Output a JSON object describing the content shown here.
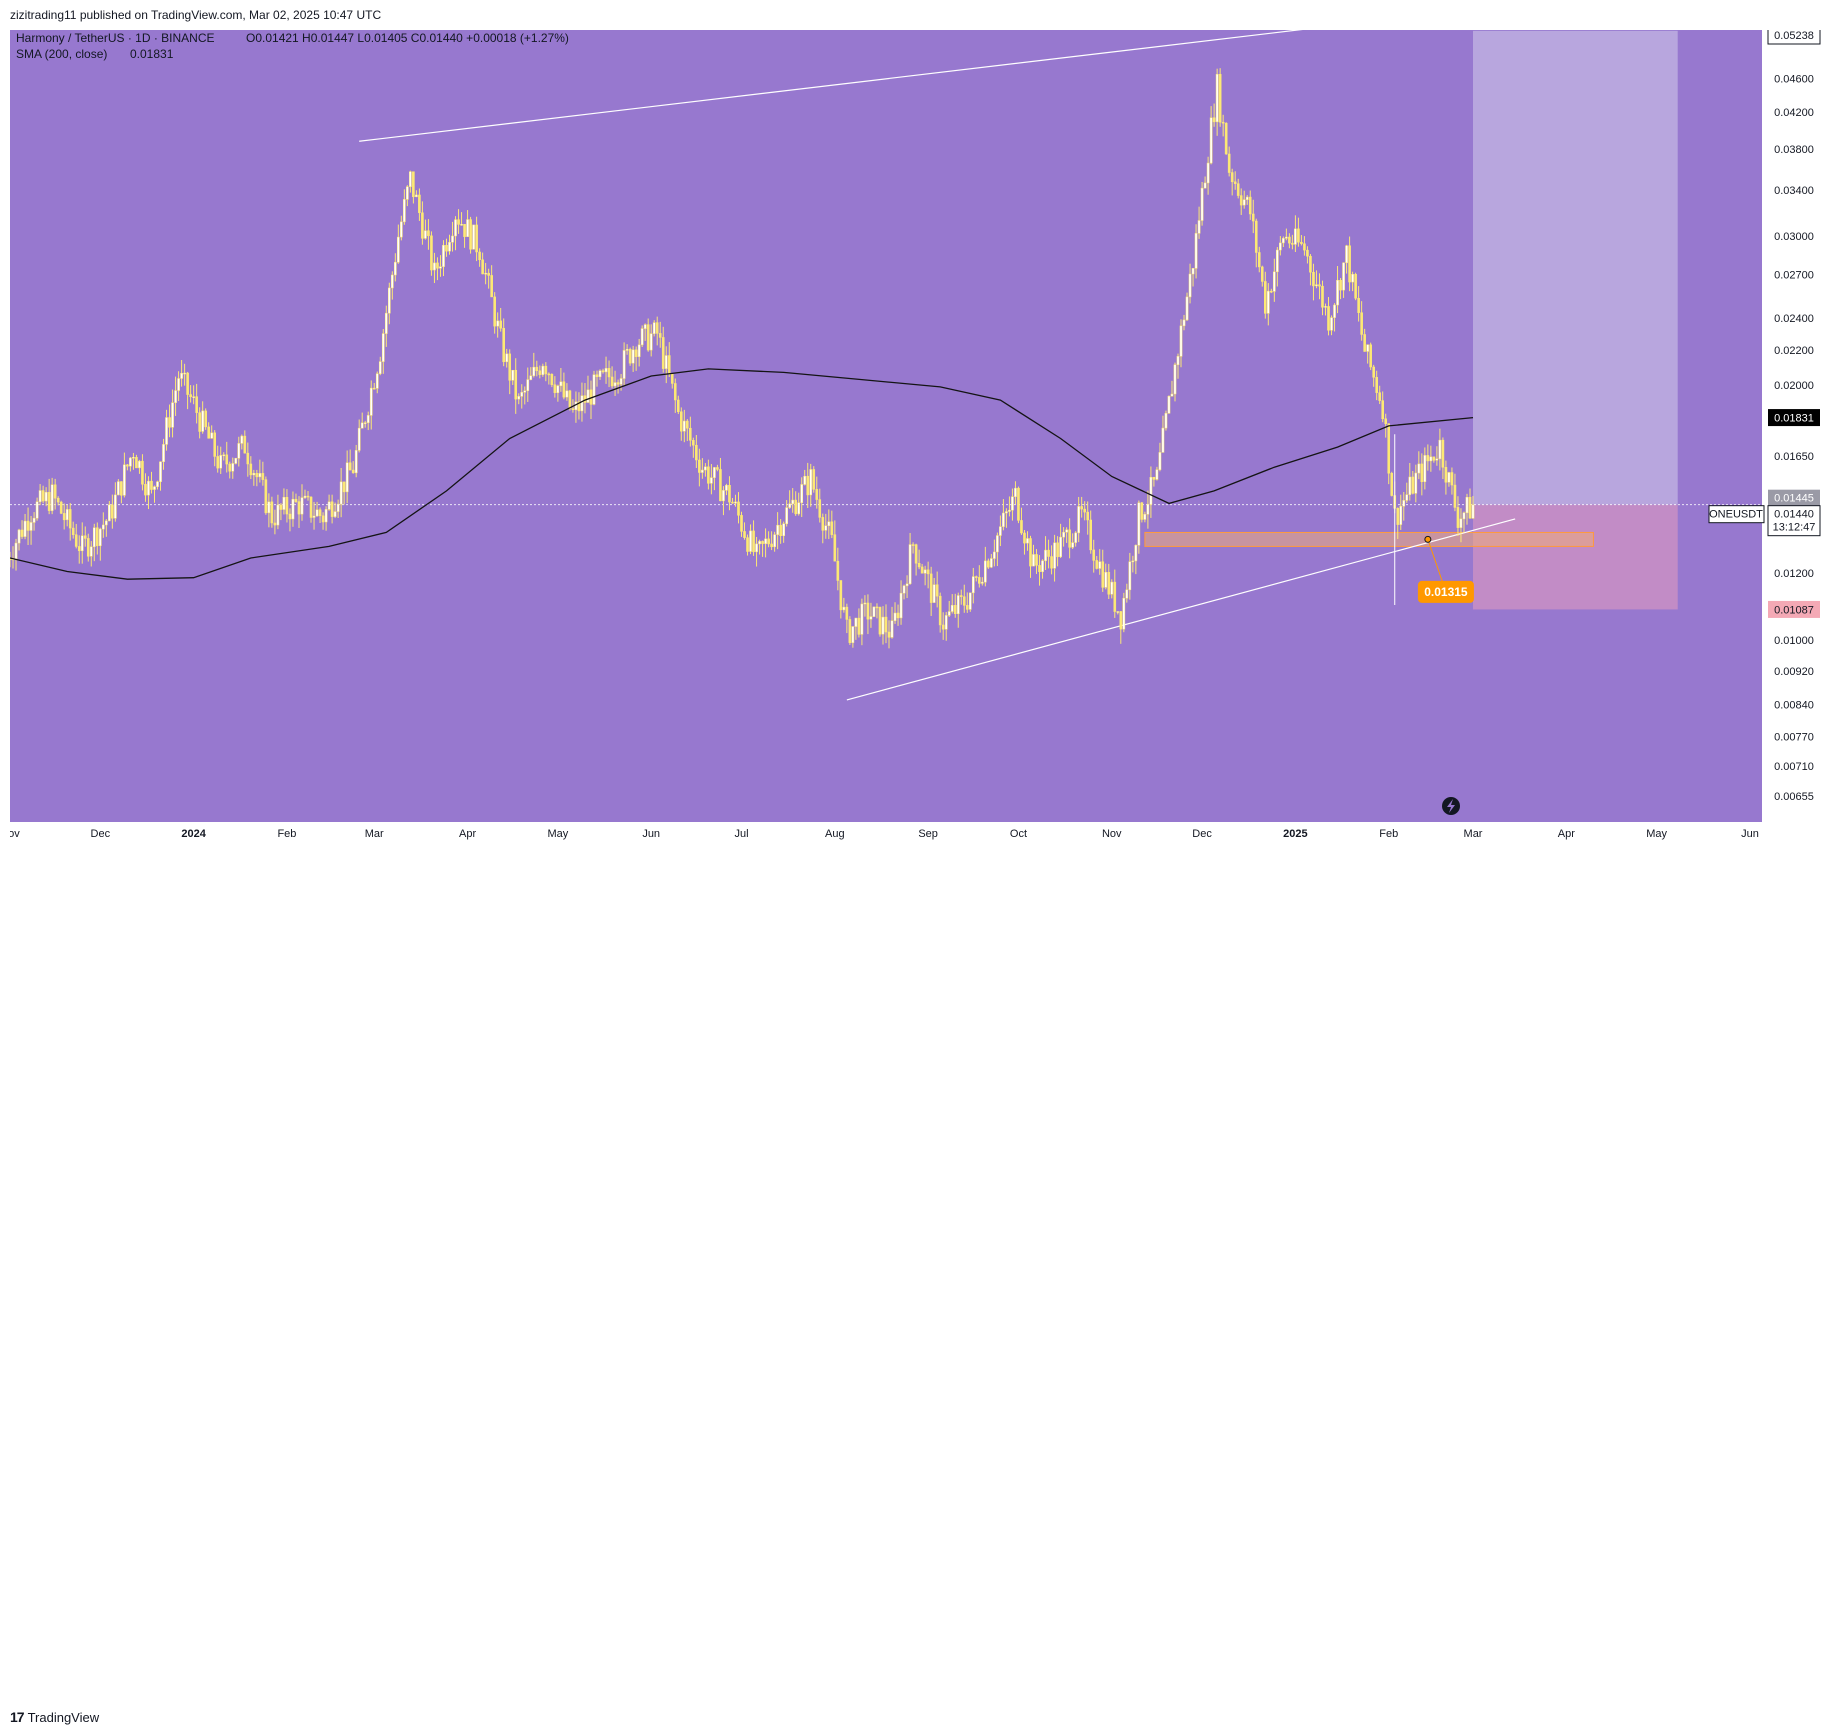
{
  "header": {
    "published": "zizitrading11 published on TradingView.com, Mar 02, 2025 10:47 UTC"
  },
  "footer": {
    "brand": "TradingView",
    "logo_icon": "tradingview-logo-icon"
  },
  "colors": {
    "background": "#9778cf",
    "candle": "#fde974",
    "candle_edge": "#ffffff",
    "sma": "#141414",
    "trendline": "#ffffff",
    "target_zone": "#b8a6de",
    "stop_zone": "#c28cc6",
    "support_box": "#f0ab7a",
    "marker": "#ff9800",
    "axis_bg": "#ffffff",
    "axis_text": "#131722"
  },
  "legend": {
    "title": "Harmony / TetherUS · 1D · BINANCE",
    "ohlc": "O0.01421 H0.01447 L0.01405 C0.01440 +0.00018 (+1.27%)",
    "sma_label": "SMA (200, close)",
    "sma_value": "0.01831"
  },
  "price_badges": {
    "top": "0.05238",
    "sma": "0.01831",
    "last_bar": "0.01445",
    "symbol": "ONEUSDT",
    "price": "0.01440",
    "countdown": "13:12:47",
    "stop": "0.01087",
    "marker": "0.01315"
  },
  "chart_data": {
    "type": "candlestick",
    "symbol": "ONEUSDT",
    "interval": "1D",
    "exchange": "BINANCE",
    "y_scale": "log",
    "ylim": [
      0.0061,
      0.0525
    ],
    "x_range": [
      "2023-11-01",
      "2025-06-05"
    ],
    "y_ticks": [
      "0.04600",
      "0.04200",
      "0.03800",
      "0.03400",
      "0.03000",
      "0.02700",
      "0.02400",
      "0.02200",
      "0.02000",
      "0.01650",
      "0.01200",
      "0.01000",
      "0.00920",
      "0.00840",
      "0.00770",
      "0.00710",
      "0.00655"
    ],
    "y_tick_values": [
      0.046,
      0.042,
      0.038,
      0.034,
      0.03,
      0.027,
      0.024,
      0.022,
      0.02,
      0.0165,
      0.012,
      0.01,
      0.0092,
      0.0084,
      0.0077,
      0.0071,
      0.00655
    ],
    "x_ticks": [
      {
        "date": "2023-11-01",
        "label": "Nov"
      },
      {
        "date": "2023-12-01",
        "label": "Dec"
      },
      {
        "date": "2024-01-01",
        "label": "2024"
      },
      {
        "date": "2024-02-01",
        "label": "Feb"
      },
      {
        "date": "2024-03-01",
        "label": "Mar"
      },
      {
        "date": "2024-04-01",
        "label": "Apr"
      },
      {
        "date": "2024-05-01",
        "label": "May"
      },
      {
        "date": "2024-06-01",
        "label": "Jun"
      },
      {
        "date": "2024-07-01",
        "label": "Jul"
      },
      {
        "date": "2024-08-01",
        "label": "Aug"
      },
      {
        "date": "2024-09-01",
        "label": "Sep"
      },
      {
        "date": "2024-10-01",
        "label": "Oct"
      },
      {
        "date": "2024-11-01",
        "label": "Nov"
      },
      {
        "date": "2024-12-01",
        "label": "Dec"
      },
      {
        "date": "2025-01-01",
        "label": "2025"
      },
      {
        "date": "2025-02-01",
        "label": "Feb"
      },
      {
        "date": "2025-03-01",
        "label": "Mar"
      },
      {
        "date": "2025-04-01",
        "label": "Apr"
      },
      {
        "date": "2025-05-01",
        "label": "May"
      },
      {
        "date": "2025-06-01",
        "label": "Jun"
      }
    ],
    "price_path": [
      {
        "date": "2023-10-31",
        "close": 0.0125
      },
      {
        "date": "2023-11-08",
        "close": 0.0142
      },
      {
        "date": "2023-11-15",
        "close": 0.0148
      },
      {
        "date": "2023-11-25",
        "close": 0.0128
      },
      {
        "date": "2023-12-04",
        "close": 0.014
      },
      {
        "date": "2023-12-12",
        "close": 0.0168
      },
      {
        "date": "2023-12-18",
        "close": 0.0148
      },
      {
        "date": "2023-12-27",
        "close": 0.0205
      },
      {
        "date": "2024-01-01",
        "close": 0.019
      },
      {
        "date": "2024-01-10",
        "close": 0.016
      },
      {
        "date": "2024-01-18",
        "close": 0.017
      },
      {
        "date": "2024-01-27",
        "close": 0.014
      },
      {
        "date": "2024-02-05",
        "close": 0.0145
      },
      {
        "date": "2024-02-13",
        "close": 0.014
      },
      {
        "date": "2024-02-23",
        "close": 0.016
      },
      {
        "date": "2024-03-03",
        "close": 0.022
      },
      {
        "date": "2024-03-09",
        "close": 0.03
      },
      {
        "date": "2024-03-13",
        "close": 0.035
      },
      {
        "date": "2024-03-17",
        "close": 0.031
      },
      {
        "date": "2024-03-21",
        "close": 0.027
      },
      {
        "date": "2024-03-28",
        "close": 0.032
      },
      {
        "date": "2024-04-05",
        "close": 0.029
      },
      {
        "date": "2024-04-12",
        "close": 0.0225
      },
      {
        "date": "2024-04-18",
        "close": 0.019
      },
      {
        "date": "2024-04-26",
        "close": 0.0215
      },
      {
        "date": "2024-05-06",
        "close": 0.0185
      },
      {
        "date": "2024-05-14",
        "close": 0.02
      },
      {
        "date": "2024-05-22",
        "close": 0.021
      },
      {
        "date": "2024-05-27",
        "close": 0.0225
      },
      {
        "date": "2024-06-03",
        "close": 0.023
      },
      {
        "date": "2024-06-10",
        "close": 0.0185
      },
      {
        "date": "2024-06-18",
        "close": 0.016
      },
      {
        "date": "2024-06-27",
        "close": 0.0148
      },
      {
        "date": "2024-07-06",
        "close": 0.0125
      },
      {
        "date": "2024-07-15",
        "close": 0.014
      },
      {
        "date": "2024-07-24",
        "close": 0.0155
      },
      {
        "date": "2024-07-31",
        "close": 0.013
      },
      {
        "date": "2024-08-05",
        "close": 0.0102
      },
      {
        "date": "2024-08-12",
        "close": 0.0108
      },
      {
        "date": "2024-08-20",
        "close": 0.0102
      },
      {
        "date": "2024-08-27",
        "close": 0.013
      },
      {
        "date": "2024-09-06",
        "close": 0.0105
      },
      {
        "date": "2024-09-14",
        "close": 0.0112
      },
      {
        "date": "2024-09-22",
        "close": 0.0128
      },
      {
        "date": "2024-09-30",
        "close": 0.0148
      },
      {
        "date": "2024-10-06",
        "close": 0.0122
      },
      {
        "date": "2024-10-14",
        "close": 0.0128
      },
      {
        "date": "2024-10-22",
        "close": 0.014
      },
      {
        "date": "2024-10-29",
        "close": 0.012
      },
      {
        "date": "2024-11-04",
        "close": 0.0107
      },
      {
        "date": "2024-11-10",
        "close": 0.014
      },
      {
        "date": "2024-11-16",
        "close": 0.0155
      },
      {
        "date": "2024-11-22",
        "close": 0.021
      },
      {
        "date": "2024-11-28",
        "close": 0.028
      },
      {
        "date": "2024-12-03",
        "close": 0.038
      },
      {
        "date": "2024-12-06",
        "close": 0.045
      },
      {
        "date": "2024-12-10",
        "close": 0.036
      },
      {
        "date": "2024-12-17",
        "close": 0.032
      },
      {
        "date": "2024-12-22",
        "close": 0.025
      },
      {
        "date": "2024-12-28",
        "close": 0.03
      },
      {
        "date": "2025-01-04",
        "close": 0.029
      },
      {
        "date": "2025-01-12",
        "close": 0.024
      },
      {
        "date": "2025-01-18",
        "close": 0.0285
      },
      {
        "date": "2025-01-24",
        "close": 0.022
      },
      {
        "date": "2025-01-30",
        "close": 0.019
      },
      {
        "date": "2025-02-03",
        "close": 0.014
      },
      {
        "date": "2025-02-10",
        "close": 0.0155
      },
      {
        "date": "2025-02-18",
        "close": 0.017
      },
      {
        "date": "2025-02-24",
        "close": 0.014
      },
      {
        "date": "2025-03-01",
        "close": 0.0144
      }
    ],
    "sma_200": [
      {
        "date": "2023-11-01",
        "value": 0.0125
      },
      {
        "date": "2023-11-20",
        "value": 0.01205
      },
      {
        "date": "2023-12-10",
        "value": 0.0118
      },
      {
        "date": "2024-01-01",
        "value": 0.01185
      },
      {
        "date": "2024-01-20",
        "value": 0.0125
      },
      {
        "date": "2024-02-15",
        "value": 0.0129
      },
      {
        "date": "2024-03-05",
        "value": 0.0134
      },
      {
        "date": "2024-03-25",
        "value": 0.015
      },
      {
        "date": "2024-04-15",
        "value": 0.0173
      },
      {
        "date": "2024-05-10",
        "value": 0.0192
      },
      {
        "date": "2024-06-01",
        "value": 0.0205
      },
      {
        "date": "2024-06-20",
        "value": 0.0209
      },
      {
        "date": "2024-07-15",
        "value": 0.0207
      },
      {
        "date": "2024-08-10",
        "value": 0.0203
      },
      {
        "date": "2024-09-05",
        "value": 0.0199
      },
      {
        "date": "2024-09-25",
        "value": 0.0192
      },
      {
        "date": "2024-10-15",
        "value": 0.0173
      },
      {
        "date": "2024-11-01",
        "value": 0.0156
      },
      {
        "date": "2024-11-20",
        "value": 0.0145
      },
      {
        "date": "2024-12-05",
        "value": 0.015
      },
      {
        "date": "2024-12-25",
        "value": 0.016
      },
      {
        "date": "2025-01-15",
        "value": 0.0169
      },
      {
        "date": "2025-02-01",
        "value": 0.0179
      },
      {
        "date": "2025-03-01",
        "value": 0.01831
      }
    ],
    "annotations": {
      "upper_trendline": [
        {
          "date": "2024-02-25",
          "value": 0.0388
        },
        {
          "date": "2025-02-15",
          "value": 0.0548
        }
      ],
      "lower_trendline": [
        {
          "date": "2024-08-05",
          "value": 0.0085
        },
        {
          "date": "2025-03-15",
          "value": 0.0139
        }
      ],
      "target_zone": {
        "x0": "2025-03-01",
        "x1": "2025-05-08",
        "y0": 0.01445,
        "y1": 0.05238
      },
      "stop_zone": {
        "x0": "2025-03-01",
        "x1": "2025-05-08",
        "y0": 0.01087,
        "y1": 0.01445
      },
      "support_box": {
        "x0": "2024-11-12",
        "x1": "2025-04-10",
        "y0": 0.0129,
        "y1": 0.0134
      },
      "marker_point": {
        "date": "2025-02-14",
        "value": 0.01315
      },
      "marker_label_point": {
        "date": "2025-02-20",
        "value": 0.0114
      },
      "last_price_line": 0.01445,
      "wick_low": {
        "date": "2025-02-03",
        "value": 0.011
      }
    }
  }
}
